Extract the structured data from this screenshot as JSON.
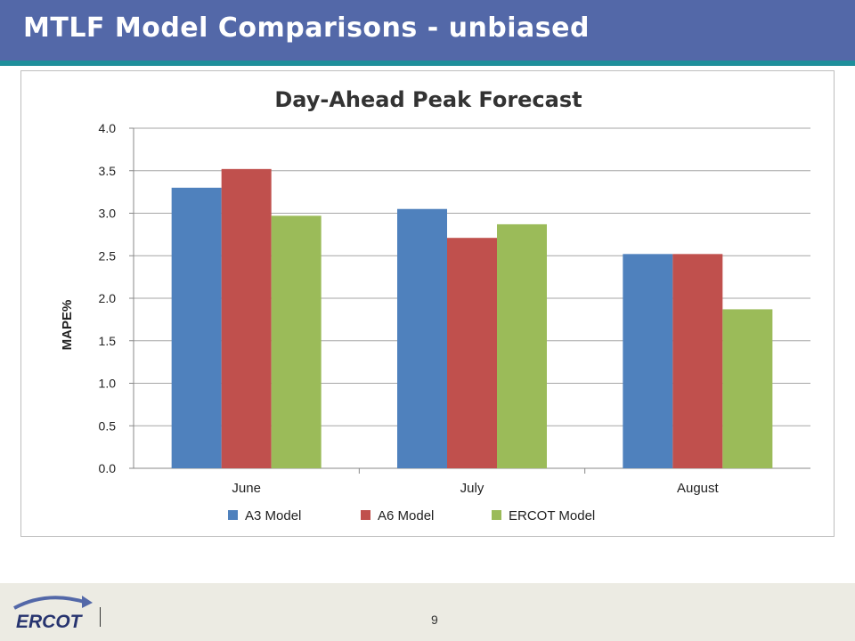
{
  "slide": {
    "title": "MTLF Model Comparisons - unbiased",
    "page_number": "9",
    "logo_text": "ERCOT"
  },
  "colors": {
    "header_bg": "#5368a8",
    "header_stripe": "#1f8f9b",
    "footer_bg": "#ecebe3"
  },
  "chart_data": {
    "type": "bar",
    "title": "Day-Ahead Peak Forecast",
    "xlabel": "",
    "ylabel": "MAPE%",
    "categories": [
      "June",
      "July",
      "August"
    ],
    "series": [
      {
        "name": "A3 Model",
        "color": "#4f81bd",
        "values": [
          3.3,
          3.05,
          2.52
        ]
      },
      {
        "name": "A6 Model",
        "color": "#c0504d",
        "values": [
          3.52,
          2.71,
          2.52
        ]
      },
      {
        "name": "ERCOT Model",
        "color": "#9bbb59",
        "values": [
          2.97,
          2.87,
          1.87
        ]
      }
    ],
    "ylim": [
      0,
      4.0
    ],
    "yticks": [
      "0.0",
      "0.5",
      "1.0",
      "1.5",
      "2.0",
      "2.5",
      "3.0",
      "3.5",
      "4.0"
    ],
    "grid": true,
    "legend_position": "bottom"
  }
}
